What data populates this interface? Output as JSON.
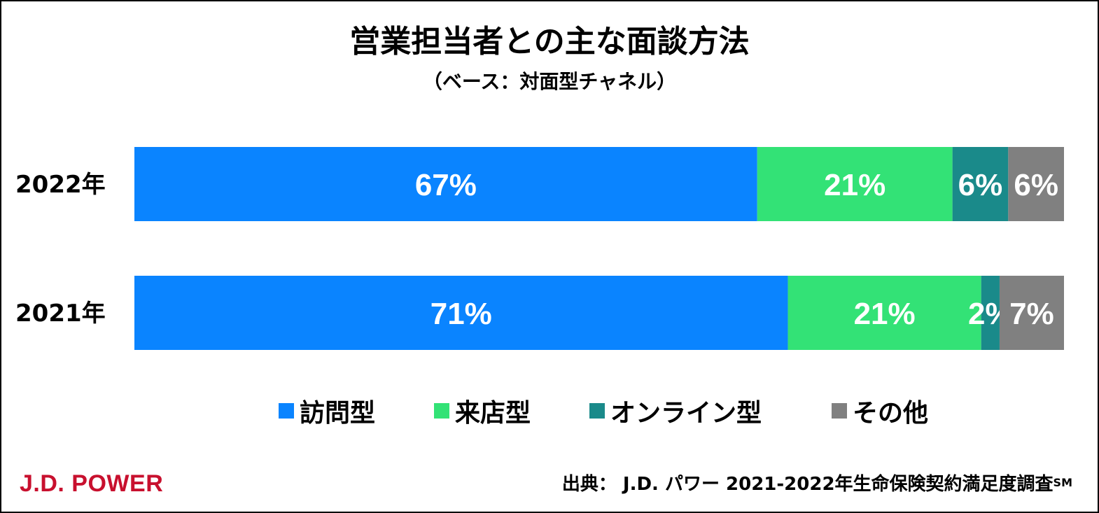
{
  "colors": {
    "brand": "#c8102e",
    "frame_border": "#000000"
  },
  "chart_data": {
    "type": "bar",
    "orientation": "horizontal",
    "stacked": true,
    "title": "営業担当者との主な面談方法",
    "subtitle": "（ベース：対面型チャネル）",
    "categories": [
      "2022年",
      "2021年"
    ],
    "unit": "%",
    "series": [
      {
        "name": "訪問型",
        "color": "#0a84ff",
        "values": [
          67,
          71
        ],
        "labels": [
          "67%",
          "71%"
        ]
      },
      {
        "name": "来店型",
        "color": "#33e276",
        "values": [
          21,
          21
        ],
        "labels": [
          "21%",
          "21%"
        ]
      },
      {
        "name": "オンライン型",
        "color": "#1a8a8a",
        "values": [
          6,
          2
        ],
        "labels": [
          "6%",
          "2%"
        ]
      },
      {
        "name": "その他",
        "color": "#808080",
        "values": [
          6,
          7
        ],
        "labels": [
          "6%",
          "7%"
        ]
      }
    ],
    "legend_position": "bottom"
  },
  "footer": {
    "brand": "J.D. POWER",
    "source_text": "出典：  J.D. パワー 2021-2022年生命保険契約満足度調査",
    "source_mark": "SM"
  }
}
